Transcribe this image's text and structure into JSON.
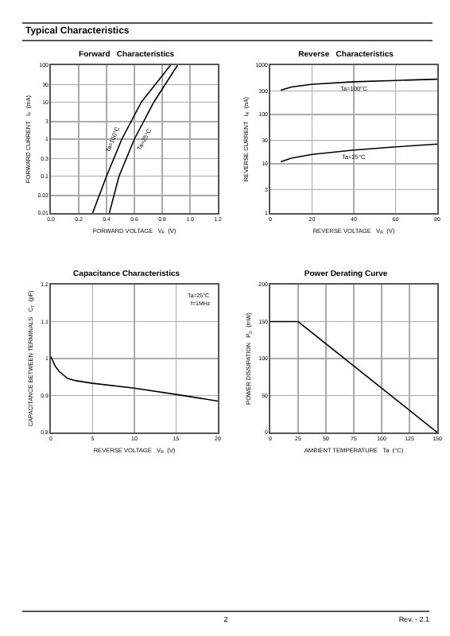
{
  "chart_data": [
    {
      "type": "line",
      "title": "Forward   Characteristics",
      "xlabel": "FORWARD VOLTAGE   V$_{F}$  (V)",
      "ylabel": "FORWARD CURRENT   I$_{F}$  (mA)",
      "log": "y",
      "grid": true,
      "marker": "none",
      "line_style": "solid",
      "xlim": [
        0,
        1.2
      ],
      "xticks": [
        {
          "value": 0,
          "label": "0.0"
        },
        0.2,
        0.4,
        0.6,
        0.8,
        {
          "value": 1,
          "label": "1.0"
        },
        1.2
      ],
      "ylim": [
        0.01,
        100
      ],
      "yticks": [
        0.01,
        0.03,
        0.1,
        0.3,
        1,
        3,
        10,
        30,
        100
      ],
      "series": [
        {
          "color": "#000000",
          "x": [
            0.3,
            0.4,
            0.51,
            0.65,
            0.86
          ],
          "values": [
            0.01,
            0.1,
            1,
            10,
            100
          ]
        },
        {
          "color": "#000000",
          "x": [
            0.42,
            0.49,
            0.6,
            0.74,
            0.91
          ],
          "values": [
            0.01,
            0.1,
            1,
            10,
            100
          ]
        }
      ],
      "annotations": [
        "Typical Characteristics",
        {
          "text": "Ta=100°C",
          "x": 0.51,
          "y": 1
        },
        {
          "text": "Ta=25°C",
          "x": 0.6,
          "y": 1
        }
      ]
    },
    {
      "type": "line",
      "title": "Reverse   Characteristics",
      "xlabel": "REVERSE VOLTAGE   V$_{R}$  (V)",
      "ylabel": "REVERSE CURRENT   I$_{R}$  (nA)",
      "log": "y",
      "grid": true,
      "marker": "none",
      "line_style": "solid",
      "xlim": [
        0,
        80
      ],
      "xticks": [
        0,
        20,
        40,
        60,
        80
      ],
      "ylim": [
        1,
        1000
      ],
      "yticks": [
        1,
        3,
        10,
        30,
        100,
        300,
        1000
      ],
      "series": [
        {
          "color": "#000000",
          "x": [
            5,
            10,
            20,
            40,
            60,
            80
          ],
          "values": [
            310,
            360,
            410,
            460,
            490,
            520
          ]
        },
        {
          "color": "#000000",
          "x": [
            5,
            10,
            20,
            40,
            60,
            80
          ],
          "values": [
            11,
            13,
            15.5,
            19,
            22,
            25
          ]
        }
      ],
      "annotations": [
        {
          "text": "Ta=100°C",
          "x": 40,
          "y": 460
        },
        {
          "text": "Ta=25°C",
          "x": 40,
          "y": 19
        }
      ]
    },
    {
      "type": "line",
      "title": "Capacitance Characteristics",
      "xlabel": "REVERSE VOLTAGE   V$_{R}$  (V)",
      "ylabel": "CAPACITANCE BETWEEN TERMINALS   C$_{T}$  (pF)",
      "grid": true,
      "marker": "none",
      "line_style": "solid",
      "xlim": [
        0,
        20
      ],
      "xticks": [
        0,
        5,
        10,
        15,
        20
      ],
      "ylim": [
        0.8,
        1.2
      ],
      "yticks": [
        0.8,
        0.9,
        1.0,
        1.1,
        1.2
      ],
      "series": [
        {
          "color": "#000000",
          "x": [
            0,
            0.5,
            1,
            2,
            3,
            5,
            10,
            15,
            20
          ],
          "values": [
            1.005,
            0.98,
            0.965,
            0.946,
            0.94,
            0.933,
            0.92,
            0.903,
            0.885
          ]
        }
      ],
      "annotations": [
        "Ta=25°C",
        "f=1MHz"
      ]
    },
    {
      "type": "line",
      "title": "Power Derating Curve",
      "xlabel": "AMBIENT TEMPERATURE   Ta  (°C)",
      "ylabel": "POWER DISSIPATION   P$_{D}$  (mW)",
      "grid": true,
      "marker": "none",
      "line_style": "solid",
      "xlim": [
        0,
        150
      ],
      "xticks": [
        0,
        25,
        50,
        75,
        100,
        125,
        150
      ],
      "ylim": [
        0,
        200
      ],
      "yticks": [
        0,
        50,
        100,
        150,
        200
      ],
      "series": [
        {
          "color": "#000000",
          "x": [
            0,
            25,
            150
          ],
          "values": [
            150,
            150,
            0
          ]
        }
      ],
      "annotations": [
        "2",
        "Rev. - 2.1"
      ]
    }
  ]
}
